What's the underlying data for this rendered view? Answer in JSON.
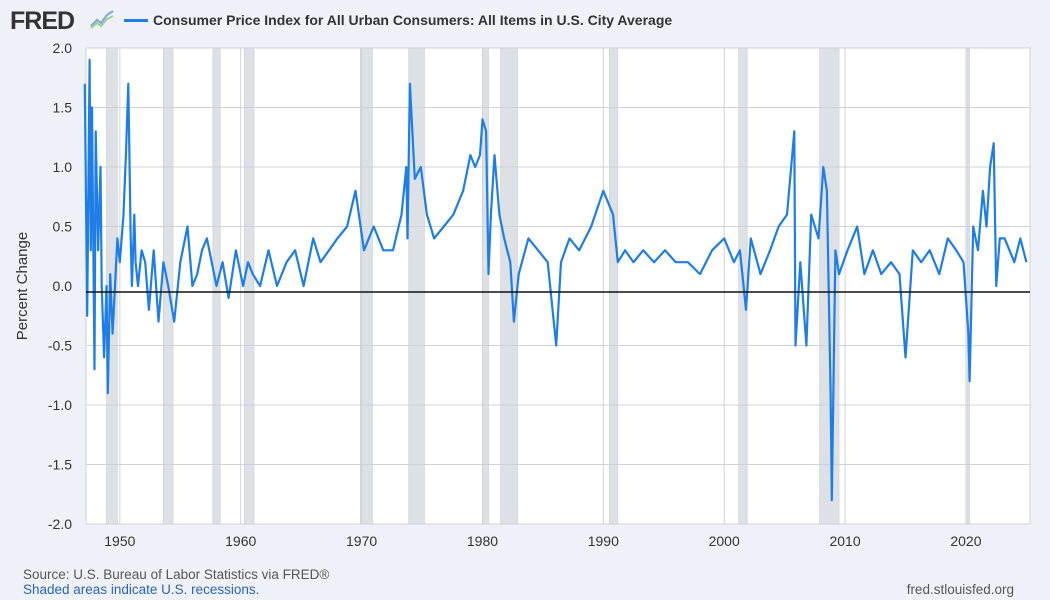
{
  "header": {
    "logo_text": "FRED",
    "logo_icon": "line-chart-icon",
    "series_title": "Consumer Price Index for All Urban Consumers: All Items in U.S. City Average",
    "series_color": "#1e7ee8"
  },
  "footer": {
    "source": "U.S. Bureau of Labor Statistics via FRED®",
    "source_prefix": "Source: ",
    "shaded_note": "Shaded areas indicate U.S. recessions.",
    "site": "fred.stlouisfed.org"
  },
  "chart_data": {
    "type": "line",
    "title": "Consumer Price Index for All Urban Consumers: All Items in U.S. City Average",
    "xlabel": "",
    "ylabel": "Percent Change",
    "xlim": [
      1947.2,
      2025.3
    ],
    "ylim": [
      -2.0,
      2.0
    ],
    "yticks": [
      "2.0",
      "1.5",
      "1.0",
      "0.5",
      "0.0",
      "-0.5",
      "-1.0",
      "-1.5",
      "-2.0"
    ],
    "xticks": [
      "1950",
      "1960",
      "1970",
      "1980",
      "1990",
      "2000",
      "2010",
      "2020"
    ],
    "grid": true,
    "zero_line": true,
    "recession_color": "#dde1e6",
    "recessions": [
      [
        1948.9,
        1949.8
      ],
      [
        1953.6,
        1954.4
      ],
      [
        1957.7,
        1958.3
      ],
      [
        1960.3,
        1961.1
      ],
      [
        1969.9,
        1970.9
      ],
      [
        1973.9,
        1975.2
      ],
      [
        1980.0,
        1980.5
      ],
      [
        1981.5,
        1982.9
      ],
      [
        1990.5,
        1991.2
      ],
      [
        2001.2,
        2001.9
      ],
      [
        2007.9,
        2009.5
      ],
      [
        2020.1,
        2020.3
      ]
    ],
    "series": [
      {
        "name": "Consumer Price Index for All Urban Consumers: All Items in U.S. City Average",
        "x": [
          1947.1,
          1947.3,
          1947.5,
          1947.6,
          1947.7,
          1947.9,
          1948.0,
          1948.2,
          1948.4,
          1948.5,
          1948.7,
          1948.9,
          1949.0,
          1949.2,
          1949.4,
          1949.6,
          1949.8,
          1950.0,
          1950.3,
          1950.5,
          1950.7,
          1950.9,
          1951.0,
          1951.2,
          1951.3,
          1951.5,
          1951.8,
          1952.1,
          1952.4,
          1952.8,
          1953.2,
          1953.6,
          1954.0,
          1954.5,
          1955.0,
          1955.6,
          1956.0,
          1956.4,
          1956.8,
          1957.2,
          1957.6,
          1958.0,
          1958.5,
          1959.0,
          1959.6,
          1960.2,
          1960.6,
          1961.0,
          1961.6,
          1962.3,
          1963.0,
          1963.8,
          1964.5,
          1965.2,
          1966.0,
          1966.6,
          1967.3,
          1968.0,
          1968.8,
          1969.5,
          1970.2,
          1971.0,
          1971.8,
          1972.6,
          1973.3,
          1973.7,
          1973.8,
          1974.0,
          1974.4,
          1974.9,
          1975.4,
          1976.0,
          1976.8,
          1977.6,
          1978.4,
          1979.0,
          1979.4,
          1979.8,
          1980.0,
          1980.3,
          1980.5,
          1980.7,
          1981.0,
          1981.4,
          1981.8,
          1982.3,
          1982.6,
          1983.0,
          1983.8,
          1984.6,
          1985.4,
          1986.1,
          1986.5,
          1987.2,
          1988.0,
          1989.0,
          1990.0,
          1990.8,
          1991.2,
          1991.8,
          1992.5,
          1993.3,
          1994.2,
          1995.1,
          1996.0,
          1997.0,
          1998.0,
          1999.0,
          2000.0,
          2000.8,
          2001.3,
          2001.8,
          2002.2,
          2003.0,
          2003.8,
          2004.5,
          2005.2,
          2005.8,
          2005.9,
          2006.3,
          2006.8,
          2007.2,
          2007.8,
          2008.2,
          2008.5,
          2008.8,
          2008.9,
          2009.2,
          2009.5,
          2010.2,
          2011.0,
          2011.6,
          2012.3,
          2013.0,
          2013.8,
          2014.5,
          2015.0,
          2015.6,
          2016.3,
          2017.0,
          2017.8,
          2018.5,
          2019.2,
          2019.8,
          2020.2,
          2020.3,
          2020.6,
          2021.0,
          2021.4,
          2021.7,
          2022.0,
          2022.3,
          2022.5,
          2022.8,
          2023.2,
          2023.6,
          2024.0,
          2024.5,
          2025.0
        ],
        "values": [
          1.7,
          -0.25,
          1.9,
          0.3,
          1.5,
          -0.7,
          1.3,
          0.3,
          1.0,
          0.0,
          -0.6,
          0.0,
          -0.9,
          0.1,
          -0.4,
          0.0,
          0.4,
          0.2,
          0.6,
          1.1,
          1.7,
          0.4,
          0.0,
          0.6,
          0.2,
          0.0,
          0.3,
          0.2,
          -0.2,
          0.3,
          -0.3,
          0.2,
          0.0,
          -0.3,
          0.2,
          0.5,
          0.0,
          0.1,
          0.3,
          0.4,
          0.2,
          0.0,
          0.2,
          -0.1,
          0.3,
          0.0,
          0.2,
          0.1,
          0.0,
          0.3,
          0.0,
          0.2,
          0.3,
          0.0,
          0.4,
          0.2,
          0.3,
          0.4,
          0.5,
          0.8,
          0.3,
          0.5,
          0.3,
          0.3,
          0.6,
          1.0,
          0.4,
          1.7,
          0.9,
          1.0,
          0.6,
          0.4,
          0.5,
          0.6,
          0.8,
          1.1,
          1.0,
          1.1,
          1.4,
          1.3,
          0.1,
          0.6,
          1.1,
          0.6,
          0.4,
          0.2,
          -0.3,
          0.1,
          0.4,
          0.3,
          0.2,
          -0.5,
          0.2,
          0.4,
          0.3,
          0.5,
          0.8,
          0.6,
          0.2,
          0.3,
          0.2,
          0.3,
          0.2,
          0.3,
          0.2,
          0.2,
          0.1,
          0.3,
          0.4,
          0.2,
          0.3,
          -0.2,
          0.4,
          0.1,
          0.3,
          0.5,
          0.6,
          1.3,
          -0.5,
          0.2,
          -0.5,
          0.6,
          0.4,
          1.0,
          0.8,
          -0.9,
          -1.8,
          0.3,
          0.1,
          0.3,
          0.5,
          0.1,
          0.3,
          0.1,
          0.2,
          0.1,
          -0.6,
          0.3,
          0.2,
          0.3,
          0.1,
          0.4,
          0.3,
          0.2,
          -0.4,
          -0.8,
          0.5,
          0.3,
          0.8,
          0.5,
          1.0,
          1.2,
          0.0,
          0.4,
          0.4,
          0.3,
          0.2,
          0.4,
          0.2
        ]
      }
    ]
  }
}
